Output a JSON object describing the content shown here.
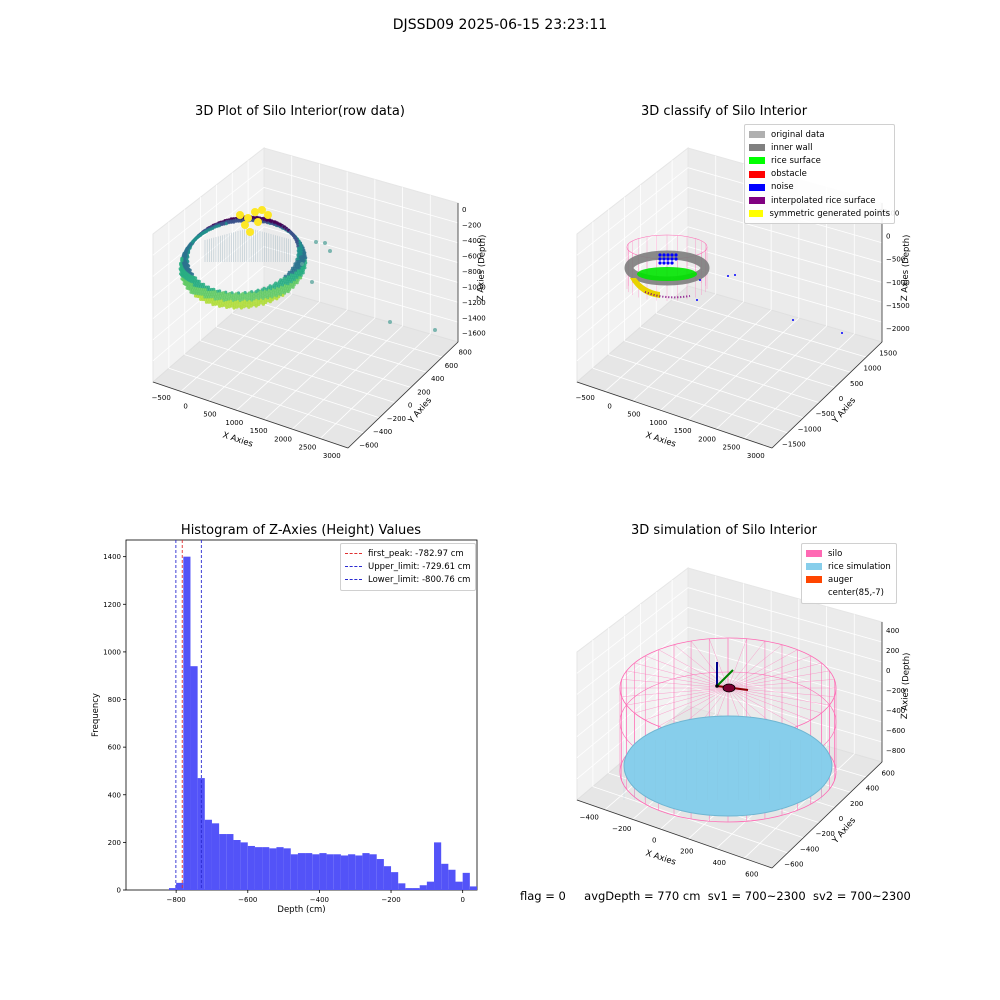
{
  "suptitle": "DJSSD09 2025-06-15 23:23:11",
  "footer": {
    "flag": "flag = 0",
    "avg": "avgDepth = 770 cm",
    "sv1": "sv1 = 700~2300",
    "sv2": "sv2 = 700~2300"
  },
  "colors": {
    "hist_bar": "#5353f8",
    "first_peak": "#e03030",
    "limits": "#2a2ad0",
    "silo": "#ff69b4",
    "rice": "#87ceeb",
    "auger": "#ff4500",
    "pane": "#f0f0f0"
  },
  "chart_data": [
    {
      "type": "scatter",
      "subtype": "3d",
      "title": "3D Plot of Silo Interior(row data)",
      "xlabel": "X Axies",
      "ylabel": "Y Axies",
      "zlabel": "Z Axies (Depth)",
      "x_ticks": [
        "−500",
        "0",
        "500",
        "1000",
        "1500",
        "2000",
        "2500",
        "3000"
      ],
      "y_ticks": [
        "−600",
        "−400",
        "−200",
        "0",
        "200",
        "400",
        "600",
        "800"
      ],
      "z_ticks": [
        "0",
        "−200",
        "−400",
        "−600",
        "−800",
        "−1000",
        "−1200",
        "−1400",
        "−1600"
      ],
      "colormap": "viridis",
      "outliers": [
        {
          "x": 2500,
          "y": 400,
          "z": -1520
        },
        {
          "x": 3000,
          "y": 700,
          "z": -1600
        },
        {
          "x": 1300,
          "y": 300,
          "z": -750
        },
        {
          "x": 1200,
          "y": 200,
          "z": -500
        },
        {
          "x": 1100,
          "y": 350,
          "z": -450
        }
      ]
    },
    {
      "type": "scatter",
      "subtype": "3d",
      "title": "3D classify of Silo Interior",
      "xlabel": "X Axies",
      "ylabel": "Y Axies",
      "zlabel": "Z Axies (Depth)",
      "x_ticks": [
        "−500",
        "0",
        "500",
        "1000",
        "1500",
        "2000",
        "2500",
        "3000"
      ],
      "y_ticks": [
        "−1500",
        "−1000",
        "−500",
        "0",
        "500",
        "1000",
        "1500"
      ],
      "z_ticks": [
        "500",
        "0",
        "−500",
        "−1000",
        "−1500",
        "−2000"
      ],
      "z_top_partial": "000",
      "legend": [
        {
          "label": "original data",
          "color": "#b0b0b0"
        },
        {
          "label": "inner wall",
          "color": "#808080"
        },
        {
          "label": "rice surface",
          "color": "#00ff00"
        },
        {
          "label": "obstacle",
          "color": "#ff0000"
        },
        {
          "label": "noise",
          "color": "#0000ff"
        },
        {
          "label": "interpolated rice surface",
          "color": "#800080"
        },
        {
          "label": "symmetric generated points",
          "color": "#ffff00"
        }
      ],
      "legend_position": "top-right"
    },
    {
      "type": "bar",
      "subtype": "histogram",
      "title": "Histogram of Z-Axies (Height) Values",
      "xlabel": "Depth (cm)",
      "ylabel": "Frequency",
      "xlim": [
        -940,
        40
      ],
      "ylim": [
        0,
        1470
      ],
      "x_ticks": [
        -800,
        -600,
        -400,
        -200,
        0
      ],
      "y_ticks": [
        0,
        200,
        400,
        600,
        800,
        1000,
        1200,
        1400
      ],
      "bin_width": 20,
      "bins": [
        {
          "x0": -820,
          "v": 8
        },
        {
          "x0": -800,
          "v": 30
        },
        {
          "x0": -780,
          "v": 1400
        },
        {
          "x0": -760,
          "v": 940
        },
        {
          "x0": -740,
          "v": 470
        },
        {
          "x0": -720,
          "v": 295
        },
        {
          "x0": -700,
          "v": 280
        },
        {
          "x0": -680,
          "v": 235
        },
        {
          "x0": -660,
          "v": 235
        },
        {
          "x0": -640,
          "v": 210
        },
        {
          "x0": -620,
          "v": 200
        },
        {
          "x0": -600,
          "v": 185
        },
        {
          "x0": -580,
          "v": 180
        },
        {
          "x0": -560,
          "v": 180
        },
        {
          "x0": -540,
          "v": 175
        },
        {
          "x0": -520,
          "v": 180
        },
        {
          "x0": -500,
          "v": 175
        },
        {
          "x0": -480,
          "v": 150
        },
        {
          "x0": -460,
          "v": 155
        },
        {
          "x0": -440,
          "v": 155
        },
        {
          "x0": -420,
          "v": 150
        },
        {
          "x0": -400,
          "v": 155
        },
        {
          "x0": -380,
          "v": 150
        },
        {
          "x0": -360,
          "v": 150
        },
        {
          "x0": -340,
          "v": 145
        },
        {
          "x0": -320,
          "v": 150
        },
        {
          "x0": -300,
          "v": 145
        },
        {
          "x0": -280,
          "v": 155
        },
        {
          "x0": -260,
          "v": 150
        },
        {
          "x0": -240,
          "v": 130
        },
        {
          "x0": -220,
          "v": 100
        },
        {
          "x0": -200,
          "v": 75
        },
        {
          "x0": -180,
          "v": 28
        },
        {
          "x0": -160,
          "v": 8
        },
        {
          "x0": -140,
          "v": 8
        },
        {
          "x0": -120,
          "v": 20
        },
        {
          "x0": -100,
          "v": 35
        },
        {
          "x0": -80,
          "v": 200
        },
        {
          "x0": -60,
          "v": 110
        },
        {
          "x0": -40,
          "v": 85
        },
        {
          "x0": -20,
          "v": 35
        },
        {
          "x0": 0,
          "v": 72
        },
        {
          "x0": 20,
          "v": 15
        },
        {
          "x0": 40,
          "v": 25
        }
      ],
      "vlines": [
        {
          "x": -782.97,
          "label": "first_peak: -782.97 cm",
          "role": "first_peak"
        },
        {
          "x": -729.61,
          "label": "Upper_limit: -729.61 cm",
          "role": "upper"
        },
        {
          "x": -800.76,
          "label": "Lower_limit: -800.76 cm",
          "role": "lower"
        }
      ],
      "legend_position": "top-right"
    },
    {
      "type": "scatter",
      "subtype": "3d-simulation",
      "title": "3D simulation of Silo Interior",
      "xlabel": "X Axies",
      "ylabel": "Y Axies",
      "zlabel": "Z Axies (Depth)",
      "x_ticks": [
        "−400",
        "−200",
        "0",
        "200",
        "400",
        "600"
      ],
      "y_ticks": [
        "−600",
        "−400",
        "−200",
        "0",
        "200",
        "400",
        "600"
      ],
      "z_ticks": [
        "400",
        "200",
        "0",
        "−200",
        "−400",
        "−600",
        "−800"
      ],
      "legend": [
        {
          "label": "silo",
          "color": "#ff69b4"
        },
        {
          "label": "rice simulation",
          "color": "#87ceeb"
        },
        {
          "label": "auger",
          "color": "#ff4500"
        },
        {
          "label": "center(85,-7)",
          "color": ""
        }
      ],
      "legend_position": "top-right"
    }
  ]
}
